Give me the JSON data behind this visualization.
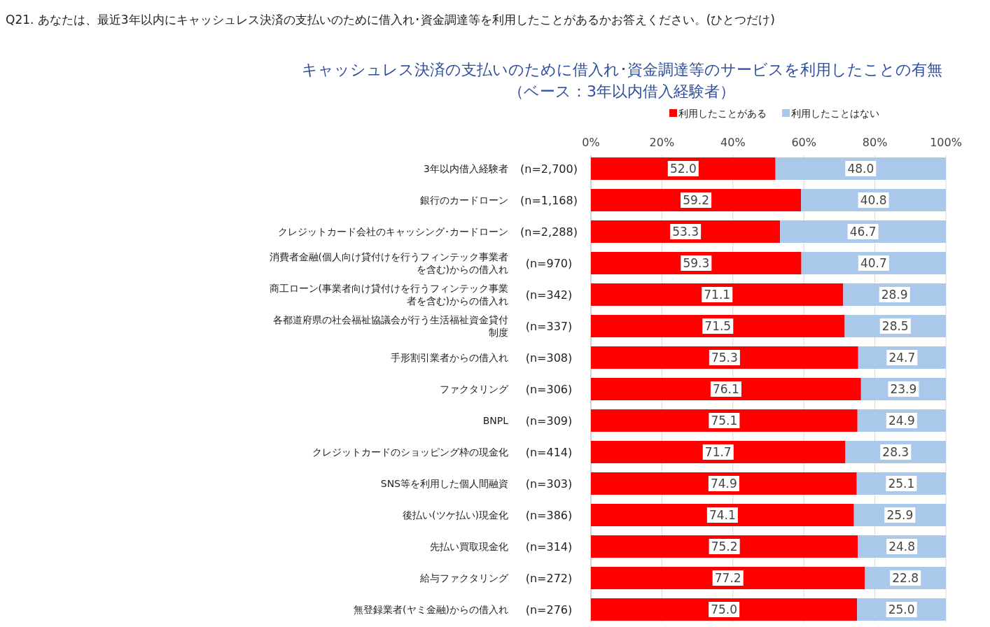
{
  "chart_data": {
    "type": "bar",
    "orientation": "horizontal",
    "stacked": true,
    "title": "キャッシュレス決済の支払いのために借入れ･資金調達等のサービスを利用したことの有無",
    "subtitle": "（ベース：3年以内借入経験者）",
    "annotations": [
      "Q21. あなたは、最近3年以内にキャッシュレス決済の支払いのために借入れ･資金調達等を利用したことがあるかお答えください。(ひとつだけ)"
    ],
    "categories": [
      "3年以内借入経験者 (n=2,700)",
      "銀行のカードローン (n=1,168)",
      "クレジットカード会社のキャッシング･カードローン (n=2,288)",
      "消費者金融(個人向け貸付けを行うフィンテック事業者を含む)からの借入れ (n=970)",
      "商工ローン(事業者向け貸付けを行うフィンテック事業者を含む)からの借入れ (n=342)",
      "各都道府県の社会福祉協議会が行う生活福祉資金貸付制度 (n=337)",
      "手形割引業者からの借入れ (n=308)",
      "ファクタリング (n=306)",
      "BNPL (n=309)",
      "クレジットカードのショッピング枠の現金化 (n=414)",
      "SNS等を利用した個人間融資 (n=303)",
      "後払い(ツケ払い)現金化 (n=386)",
      "先払い買取現金化 (n=314)",
      "給与ファクタリング (n=272)",
      "無登録業者(ヤミ金融)からの借入れ (n=276)"
    ],
    "series": [
      {
        "name": "利用したことがある",
        "color": "#ff0000",
        "values": [
          52.0,
          59.2,
          53.3,
          59.3,
          71.1,
          71.5,
          75.3,
          76.1,
          75.1,
          71.7,
          74.9,
          74.1,
          75.2,
          77.2,
          75.0
        ],
        "value_labels": [
          "52.0",
          "59.2",
          "53.3",
          "59.3",
          "71.1",
          "71.5",
          "75.3",
          "76.1",
          "75.1",
          "71.7",
          "74.9",
          "74.1",
          "75.2",
          "77.2",
          "75.0"
        ]
      },
      {
        "name": "利用したことはない",
        "color": "#a9c8ea",
        "values": [
          48.0,
          40.8,
          46.7,
          40.7,
          28.9,
          28.5,
          24.7,
          23.9,
          24.9,
          28.3,
          25.1,
          25.9,
          24.8,
          22.8,
          25.0
        ],
        "value_labels": [
          "48.0",
          "40.8",
          "46.7",
          "40.7",
          "28.9",
          "28.5",
          "24.7",
          "23.9",
          "24.9",
          "28.3",
          "25.1",
          "25.9",
          "24.8",
          "22.8",
          "25.0"
        ]
      }
    ],
    "xlim": [
      0,
      100
    ],
    "xticks": [
      {
        "value": 0,
        "label": "0%"
      },
      {
        "value": 20,
        "label": "20%"
      },
      {
        "value": 40,
        "label": "40%"
      },
      {
        "value": 60,
        "label": "60%"
      },
      {
        "value": 80,
        "label": "80%"
      },
      {
        "value": 100,
        "label": "100%"
      }
    ],
    "legend": "top",
    "grid": "x"
  }
}
